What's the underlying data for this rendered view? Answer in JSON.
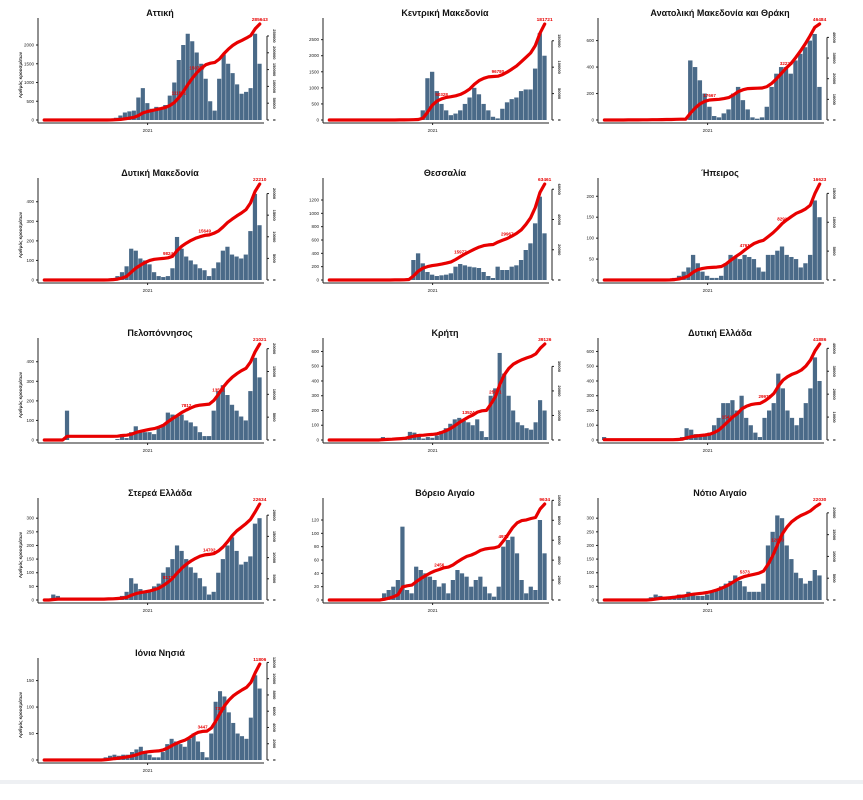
{
  "y_axis_label": "Αριθμός κρουσμάτων",
  "x_tick": "2021",
  "colors": {
    "bars": "#4a6a88",
    "line": "#e80000",
    "label": "#e80000",
    "axis": "#222222"
  },
  "chart_data": [
    {
      "type": "bar+line",
      "title": "Αττική",
      "yticks": [
        0,
        500,
        1000,
        1500,
        2000
      ],
      "ymax": 2400,
      "right_ticks": [
        0,
        50000,
        100000,
        150000,
        200000,
        250000
      ],
      "final_label": "285643",
      "mid_labels": [
        {
          "text": "111521",
          "at": 30
        },
        {
          "text": "150763",
          "at": 34
        }
      ],
      "values": [
        0,
        0,
        0,
        0,
        0,
        0,
        0,
        0,
        0,
        0,
        0,
        0,
        0,
        0,
        10,
        20,
        60,
        120,
        200,
        230,
        250,
        600,
        850,
        450,
        300,
        350,
        300,
        400,
        650,
        1000,
        1600,
        2000,
        2300,
        2100,
        1800,
        1500,
        1100,
        500,
        250,
        1100,
        1750,
        1500,
        1250,
        950,
        700,
        750,
        850,
        2300,
        1500
      ]
    },
    {
      "type": "bar+line",
      "title": "Κεντρική Μακεδονία",
      "yticks": [
        0,
        500,
        1000,
        1500,
        2000,
        2500
      ],
      "ymax": 2800,
      "right_ticks": [
        0,
        50000,
        100000,
        150000
      ],
      "final_label": "181721",
      "mid_labels": [
        {
          "text": "50328",
          "at": 24
        },
        {
          "text": "96780",
          "at": 36
        }
      ],
      "values": [
        0,
        0,
        0,
        0,
        0,
        0,
        0,
        0,
        0,
        0,
        0,
        0,
        0,
        0,
        5,
        10,
        10,
        20,
        30,
        40,
        300,
        1300,
        1500,
        900,
        500,
        300,
        150,
        200,
        300,
        500,
        700,
        1000,
        800,
        500,
        300,
        100,
        50,
        350,
        550,
        650,
        700,
        900,
        950,
        950,
        1600,
        2700,
        2000
      ]
    },
    {
      "type": "bar+line",
      "title": "Ανατολική Μακεδονία και Θράκη",
      "yticks": [
        0,
        200,
        400,
        600
      ],
      "ymax": 680,
      "right_ticks": [
        0,
        10000,
        20000,
        30000,
        40000
      ],
      "final_label": "46484",
      "mid_labels": [
        {
          "text": "17667",
          "at": 22
        },
        {
          "text": "32221",
          "at": 38
        }
      ],
      "values": [
        0,
        0,
        0,
        0,
        0,
        5,
        0,
        0,
        10,
        0,
        5,
        5,
        5,
        5,
        5,
        10,
        10,
        10,
        450,
        400,
        300,
        200,
        100,
        30,
        20,
        50,
        80,
        200,
        250,
        150,
        80,
        20,
        10,
        20,
        100,
        250,
        350,
        400,
        400,
        350,
        450,
        500,
        550,
        600,
        650,
        250
      ]
    },
    {
      "type": "bar+line",
      "title": "Δυτική Μακεδονία",
      "yticks": [
        0,
        100,
        200,
        300,
        400
      ],
      "ymax": 460,
      "right_ticks": [
        0,
        5000,
        10000,
        15000,
        20000
      ],
      "final_label": "22210",
      "mid_labels": [
        {
          "text": "9824",
          "at": 27
        },
        {
          "text": "15649",
          "at": 35
        }
      ],
      "values": [
        0,
        0,
        0,
        0,
        0,
        0,
        0,
        0,
        0,
        0,
        0,
        0,
        0,
        0,
        5,
        10,
        20,
        40,
        70,
        160,
        150,
        110,
        100,
        80,
        40,
        20,
        15,
        20,
        60,
        220,
        160,
        120,
        100,
        80,
        60,
        50,
        20,
        60,
        90,
        150,
        170,
        130,
        120,
        110,
        130,
        250,
        440,
        280
      ]
    },
    {
      "type": "bar+line",
      "title": "Θεσσαλία",
      "yticks": [
        0,
        200,
        400,
        600,
        800,
        1000,
        1200
      ],
      "ymax": 1350,
      "right_ticks": [
        0,
        20000,
        40000,
        60000
      ],
      "final_label": "63461",
      "mid_labels": [
        {
          "text": "15977",
          "at": 28
        },
        {
          "text": "29967",
          "at": 38
        }
      ],
      "values": [
        0,
        0,
        0,
        0,
        0,
        0,
        0,
        0,
        0,
        0,
        0,
        0,
        0,
        0,
        5,
        5,
        10,
        20,
        300,
        400,
        250,
        120,
        80,
        60,
        70,
        80,
        100,
        200,
        240,
        220,
        200,
        190,
        180,
        120,
        60,
        30,
        200,
        150,
        150,
        200,
        220,
        300,
        450,
        550,
        850,
        1250,
        700
      ]
    },
    {
      "type": "bar+line",
      "title": "Ήπειρος",
      "yticks": [
        0,
        50,
        100,
        150,
        200
      ],
      "ymax": 215,
      "right_ticks": [
        0,
        5000,
        10000,
        15000
      ],
      "final_label": "16623",
      "mid_labels": [
        {
          "text": "4761",
          "at": 30
        },
        {
          "text": "8291",
          "at": 38
        }
      ],
      "values": [
        0,
        0,
        0,
        0,
        0,
        0,
        0,
        0,
        0,
        0,
        0,
        0,
        0,
        0,
        2,
        5,
        10,
        20,
        30,
        60,
        40,
        20,
        10,
        5,
        5,
        10,
        40,
        60,
        55,
        50,
        60,
        55,
        50,
        30,
        20,
        60,
        60,
        70,
        80,
        60,
        55,
        50,
        30,
        40,
        60,
        190,
        150
      ]
    },
    {
      "type": "bar+line",
      "title": "Πελοπόννησος",
      "yticks": [
        0,
        100,
        200,
        300,
        400
      ],
      "ymax": 460,
      "right_ticks": [
        0,
        5000,
        10000,
        15000,
        20000
      ],
      "final_label": "21021",
      "mid_labels": [
        {
          "text": "7812",
          "at": 31
        },
        {
          "text": "13501",
          "at": 38
        }
      ],
      "values": [
        0,
        0,
        0,
        0,
        0,
        150,
        0,
        0,
        0,
        0,
        0,
        0,
        0,
        0,
        0,
        0,
        5,
        30,
        10,
        40,
        70,
        50,
        40,
        40,
        30,
        60,
        80,
        140,
        130,
        120,
        130,
        100,
        90,
        70,
        40,
        20,
        20,
        150,
        250,
        280,
        230,
        180,
        150,
        120,
        100,
        250,
        420,
        320
      ]
    },
    {
      "type": "bar+line",
      "title": "Κρήτη",
      "yticks": [
        0,
        100,
        200,
        300,
        400,
        500,
        600
      ],
      "ymax": 610,
      "right_ticks": [
        0,
        10000,
        20000,
        30000
      ],
      "final_label": "39126",
      "mid_labels": [
        {
          "text": "13524",
          "at": 31
        },
        {
          "text": "25071",
          "at": 37
        }
      ],
      "values": [
        0,
        0,
        0,
        0,
        0,
        0,
        0,
        0,
        0,
        0,
        0,
        0,
        20,
        10,
        10,
        10,
        15,
        20,
        55,
        50,
        30,
        10,
        20,
        15,
        30,
        60,
        80,
        110,
        140,
        150,
        130,
        120,
        100,
        140,
        60,
        20,
        300,
        350,
        590,
        450,
        300,
        200,
        120,
        100,
        80,
        70,
        120,
        270,
        200
      ]
    },
    {
      "type": "bar+line",
      "title": "Δυτική Ελλάδα",
      "yticks": [
        0,
        100,
        200,
        300,
        400,
        500,
        600
      ],
      "ymax": 610,
      "right_ticks": [
        0,
        10000,
        20000,
        30000,
        40000
      ],
      "final_label": "41886",
      "mid_labels": [
        {
          "text": "15415",
          "at": 27
        },
        {
          "text": "29977",
          "at": 35
        }
      ],
      "values": [
        20,
        0,
        0,
        0,
        0,
        0,
        0,
        0,
        0,
        0,
        0,
        0,
        0,
        0,
        0,
        0,
        10,
        20,
        80,
        70,
        40,
        30,
        30,
        50,
        100,
        150,
        250,
        250,
        270,
        200,
        300,
        150,
        100,
        50,
        20,
        150,
        200,
        250,
        450,
        350,
        200,
        150,
        100,
        150,
        250,
        350,
        560,
        400
      ]
    },
    {
      "type": "bar+line",
      "title": "Στερεά Ελλάδα",
      "yticks": [
        0,
        50,
        100,
        150,
        200,
        250,
        300
      ],
      "ymax": 330,
      "right_ticks": [
        0,
        5000,
        10000,
        15000,
        20000
      ],
      "final_label": "22634",
      "mid_labels": [
        {
          "text": "8171",
          "at": 27
        },
        {
          "text": "14702",
          "at": 36
        }
      ],
      "values": [
        0,
        0,
        20,
        15,
        0,
        0,
        0,
        0,
        0,
        0,
        0,
        0,
        0,
        0,
        5,
        5,
        10,
        15,
        30,
        80,
        60,
        40,
        30,
        30,
        50,
        60,
        100,
        120,
        150,
        200,
        180,
        150,
        120,
        100,
        80,
        50,
        20,
        30,
        100,
        150,
        200,
        230,
        180,
        130,
        140,
        160,
        280,
        300
      ]
    },
    {
      "type": "bar+line",
      "title": "Βόρειο Αιγαίο",
      "yticks": [
        0,
        20,
        40,
        60,
        80,
        100,
        120
      ],
      "ymax": 135,
      "right_ticks": [
        0,
        2000,
        4000,
        6000,
        8000,
        10000
      ],
      "final_label": "9634",
      "mid_labels": [
        {
          "text": "2456",
          "at": 24
        },
        {
          "text": "4978",
          "at": 38
        }
      ],
      "values": [
        0,
        0,
        0,
        0,
        0,
        0,
        0,
        0,
        0,
        0,
        0,
        0,
        10,
        15,
        20,
        30,
        110,
        15,
        10,
        50,
        45,
        40,
        35,
        30,
        20,
        25,
        10,
        30,
        45,
        40,
        35,
        20,
        30,
        35,
        20,
        10,
        5,
        20,
        80,
        90,
        95,
        70,
        30,
        10,
        20,
        15,
        120,
        70
      ]
    },
    {
      "type": "bar+line",
      "title": "Νότιο Αιγαίο",
      "yticks": [
        0,
        50,
        100,
        150,
        200,
        250,
        300
      ],
      "ymax": 330,
      "right_ticks": [
        0,
        5000,
        10000,
        15000,
        20000
      ],
      "final_label": "22030",
      "mid_labels": [
        {
          "text": "5373",
          "at": 30
        },
        {
          "text": "12620",
          "at": 37
        }
      ],
      "values": [
        0,
        0,
        0,
        0,
        0,
        0,
        0,
        0,
        0,
        0,
        10,
        20,
        15,
        10,
        10,
        15,
        20,
        15,
        30,
        20,
        15,
        15,
        20,
        30,
        40,
        50,
        60,
        70,
        90,
        70,
        50,
        30,
        30,
        30,
        60,
        200,
        250,
        310,
        300,
        200,
        150,
        100,
        80,
        60,
        70,
        110,
        90
      ]
    },
    {
      "type": "bar+line",
      "title": "Ιόνια Νησιά",
      "yticks": [
        0,
        50,
        100,
        150
      ],
      "ymax": 170,
      "right_ticks": [
        0,
        2000,
        4000,
        6000,
        8000,
        10000,
        12000
      ],
      "final_label": "11806",
      "mid_labels": [
        {
          "text": "3447",
          "at": 36
        },
        {
          "text": "7391",
          "at": 40
        }
      ],
      "values": [
        0,
        0,
        0,
        0,
        0,
        0,
        0,
        0,
        0,
        0,
        0,
        0,
        0,
        0,
        5,
        8,
        10,
        8,
        10,
        10,
        15,
        20,
        25,
        15,
        10,
        5,
        5,
        15,
        30,
        40,
        35,
        30,
        25,
        40,
        50,
        35,
        15,
        5,
        50,
        110,
        130,
        120,
        90,
        70,
        50,
        45,
        40,
        80,
        160,
        135
      ]
    }
  ]
}
